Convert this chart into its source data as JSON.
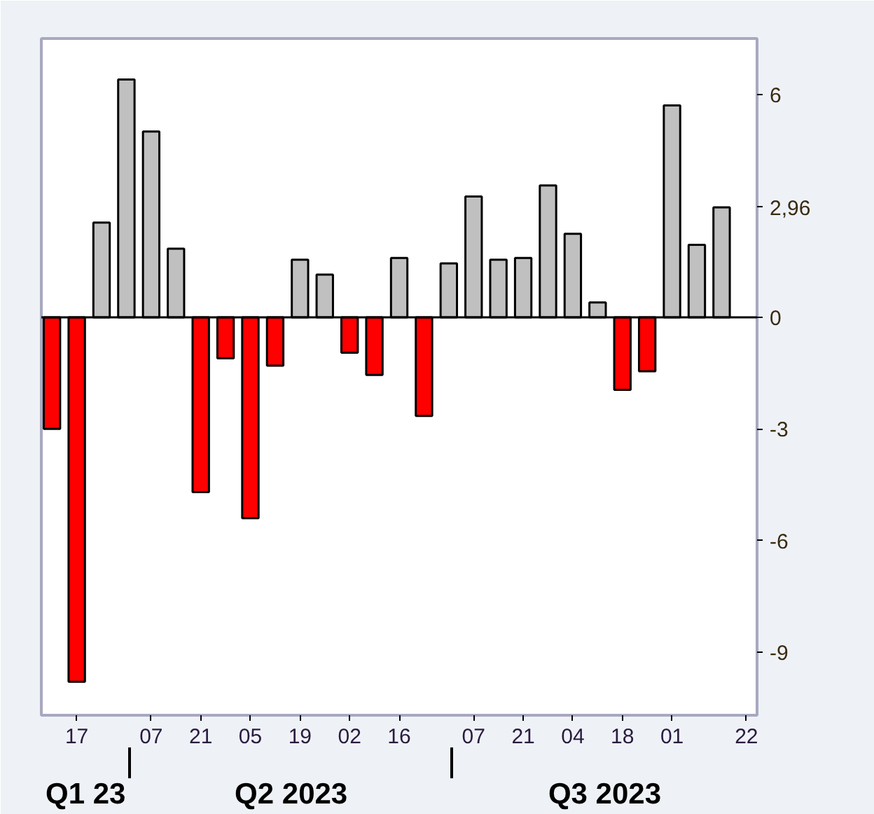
{
  "chart_data": {
    "type": "bar",
    "x": [
      "2023-03-10",
      "2023-03-17",
      "2023-03-24",
      "2023-03-31",
      "2023-04-07",
      "2023-04-14",
      "2023-04-21",
      "2023-04-28",
      "2023-05-05",
      "2023-05-12",
      "2023-05-19",
      "2023-05-26",
      "2023-06-02",
      "2023-06-09",
      "2023-06-16",
      "2023-06-23",
      "2023-06-30",
      "2023-07-07",
      "2023-07-14",
      "2023-07-21",
      "2023-07-28",
      "2023-08-04",
      "2023-08-11",
      "2023-08-18",
      "2023-08-25",
      "2023-09-01",
      "2023-09-08",
      "2023-09-15"
    ],
    "values": [
      -3.0,
      -9.8,
      2.55,
      6.4,
      5.0,
      1.85,
      -4.7,
      -1.1,
      -5.4,
      -1.3,
      1.55,
      1.15,
      -0.95,
      -1.55,
      1.6,
      -2.65,
      1.45,
      3.25,
      1.55,
      1.6,
      3.55,
      2.25,
      0.4,
      -1.95,
      -1.45,
      5.7,
      1.95,
      2.96
    ],
    "colors": [
      "#ff0000",
      "#ff0000",
      "#c0c0c0",
      "#c0c0c0",
      "#c0c0c0",
      "#c0c0c0",
      "#ff0000",
      "#ff0000",
      "#ff0000",
      "#ff0000",
      "#c0c0c0",
      "#c0c0c0",
      "#ff0000",
      "#ff0000",
      "#c0c0c0",
      "#ff0000",
      "#c0c0c0",
      "#c0c0c0",
      "#c0c0c0",
      "#c0c0c0",
      "#c0c0c0",
      "#c0c0c0",
      "#c0c0c0",
      "#ff0000",
      "#ff0000",
      "#c0c0c0",
      "#c0c0c0",
      "#c0c0c0"
    ],
    "xlim": [
      "2023-03-07",
      "2023-09-25"
    ],
    "xticks": [
      {
        "value": "2023-03-17",
        "label": "17"
      },
      {
        "value": "2023-04-07",
        "label": "07"
      },
      {
        "value": "2023-04-21",
        "label": "21"
      },
      {
        "value": "2023-05-05",
        "label": "05"
      },
      {
        "value": "2023-05-19",
        "label": "19"
      },
      {
        "value": "2023-06-02",
        "label": "02"
      },
      {
        "value": "2023-06-16",
        "label": "16"
      },
      {
        "value": "2023-07-07",
        "label": "07"
      },
      {
        "value": "2023-07-21",
        "label": "21"
      },
      {
        "value": "2023-08-04",
        "label": "04"
      },
      {
        "value": "2023-08-18",
        "label": "18"
      },
      {
        "value": "2023-09-01",
        "label": "01"
      },
      {
        "value": "2023-09-22",
        "label": "22"
      }
    ],
    "ylim": [
      -10.7,
      7.5
    ],
    "yticks": [
      -9,
      -6,
      -3,
      0,
      6
    ],
    "ref_lines": [
      {
        "axis": "y",
        "value": 0,
        "color": "#000000"
      }
    ],
    "annotations": [
      "Q1 23",
      "Q2 2023",
      "Q3 2023",
      "2,96"
    ],
    "grid": false
  }
}
